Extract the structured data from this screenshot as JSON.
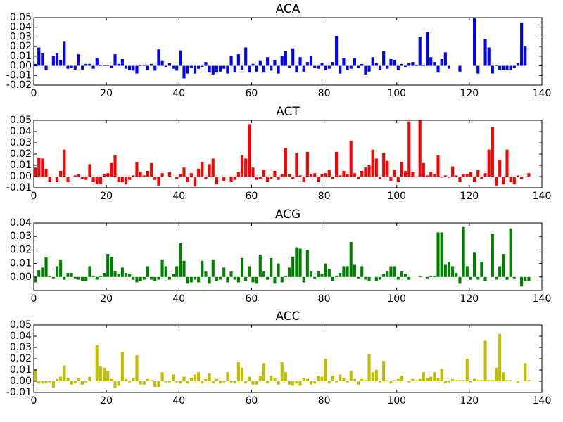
{
  "chart_data": [
    {
      "type": "bar",
      "title": "ACA",
      "color": "#0000ff",
      "x": [
        0,
        1,
        2,
        3,
        4,
        5,
        6,
        7,
        8,
        9,
        10,
        11,
        12,
        13,
        14,
        15,
        16,
        17,
        18,
        19,
        20,
        21,
        22,
        23,
        24,
        25,
        26,
        27,
        28,
        29,
        30,
        31,
        32,
        33,
        34,
        35,
        36,
        37,
        38,
        39,
        40,
        41,
        42,
        43,
        44,
        45,
        46,
        47,
        48,
        49,
        50,
        51,
        52,
        53,
        54,
        55,
        56,
        57,
        58,
        59,
        60,
        61,
        62,
        63,
        64,
        65,
        66,
        67,
        68,
        69,
        70,
        71,
        72,
        73,
        74,
        75,
        76,
        77,
        78,
        79,
        80,
        81,
        82,
        83,
        84,
        85,
        86,
        87,
        88,
        89,
        90,
        91,
        92,
        93,
        94,
        95,
        96,
        97,
        98,
        99,
        100,
        101,
        102,
        103,
        104,
        105,
        106,
        107,
        108,
        109,
        110,
        111,
        112,
        113,
        114,
        115,
        116,
        117,
        118,
        119,
        120,
        121,
        122,
        123,
        124,
        125,
        126,
        127,
        128,
        129,
        130,
        131,
        132,
        133,
        134,
        135,
        136
      ],
      "values": [
        0.002,
        0.019,
        0.013,
        -0.004,
        0,
        0.01,
        0.013,
        0.006,
        0.025,
        -0.003,
        -0.002,
        -0.004,
        0.012,
        -0.004,
        0.002,
        0.002,
        -0.003,
        0.008,
        0.001,
        0.001,
        0.001,
        -0.002,
        0.012,
        0.002,
        0.007,
        -0.003,
        -0.004,
        -0.005,
        -0.008,
        0.001,
        0.001,
        -0.004,
        0.002,
        -0.005,
        0.017,
        0.005,
        -0.001,
        0.003,
        -0.003,
        -0.005,
        0.016,
        -0.013,
        -0.008,
        -0.002,
        -0.008,
        -0.003,
        -0.001,
        0.004,
        -0.007,
        -0.009,
        -0.007,
        -0.006,
        -0.003,
        -0.008,
        0.01,
        -0.007,
        0.012,
        -0.004,
        0.019,
        -0.007,
        0.002,
        -0.006,
        0.005,
        -0.007,
        0.009,
        -0.005,
        0.006,
        -0.008,
        0.01,
        0.015,
        -0.002,
        0.018,
        -0.007,
        0.009,
        -0.006,
        0.004,
        0.01,
        -0.002,
        -0.003,
        0.003,
        -0.004,
        -0.003,
        0.004,
        0.031,
        -0.008,
        0.008,
        -0.004,
        -0.003,
        0.008,
        -0.002,
        0.002,
        -0.009,
        -0.006,
        0.009,
        0.003,
        -0.004,
        0.015,
        -0.003,
        0.007,
        0.006,
        -0.004,
        0.002,
        -0.001,
        0.003,
        0.004,
        0.001,
        0.03,
        0.001,
        0.035,
        0.009,
        0.004,
        -0.007,
        0.007,
        0.014,
        -0.003,
        0,
        0,
        -0.006,
        0,
        0,
        0,
        0.05,
        -0.008,
        0,
        0.028,
        0.019,
        -0.008,
        0.001,
        -0.004,
        -0.004,
        -0.004,
        -0.004,
        -0.002,
        0.003,
        0.045,
        0.02,
        0
      ],
      "xlim": [
        0,
        140
      ],
      "xticks": [
        0,
        20,
        40,
        60,
        80,
        100,
        120,
        140
      ],
      "ylim": [
        -0.02,
        0.05
      ],
      "yticks": [
        -0.02,
        -0.01,
        {
          "value": 0,
          "label": "0.00"
        },
        0.01,
        0.02,
        0.03,
        0.04,
        0.05
      ]
    },
    {
      "type": "bar",
      "title": "ACT",
      "color": "#ff0000",
      "x": [
        0,
        1,
        2,
        3,
        4,
        5,
        6,
        7,
        8,
        9,
        10,
        11,
        12,
        13,
        14,
        15,
        16,
        17,
        18,
        19,
        20,
        21,
        22,
        23,
        24,
        25,
        26,
        27,
        28,
        29,
        30,
        31,
        32,
        33,
        34,
        35,
        36,
        37,
        38,
        39,
        40,
        41,
        42,
        43,
        44,
        45,
        46,
        47,
        48,
        49,
        50,
        51,
        52,
        53,
        54,
        55,
        56,
        57,
        58,
        59,
        60,
        61,
        62,
        63,
        64,
        65,
        66,
        67,
        68,
        69,
        70,
        71,
        72,
        73,
        74,
        75,
        76,
        77,
        78,
        79,
        80,
        81,
        82,
        83,
        84,
        85,
        86,
        87,
        88,
        89,
        90,
        91,
        92,
        93,
        94,
        95,
        96,
        97,
        98,
        99,
        100,
        101,
        102,
        103,
        104,
        105,
        106,
        107,
        108,
        109,
        110,
        111,
        112,
        113,
        114,
        115,
        116,
        117,
        118,
        119,
        120,
        121,
        122,
        123,
        124,
        125,
        126,
        127,
        128,
        129,
        130,
        131,
        132,
        133,
        134,
        135,
        136
      ],
      "values": [
        0.008,
        0.017,
        0.016,
        0.007,
        -0.005,
        0,
        -0.005,
        0.005,
        0.024,
        -0.005,
        0,
        0.001,
        0.002,
        -0.002,
        -0.003,
        0.011,
        -0.005,
        -0.007,
        -0.007,
        0.002,
        0.003,
        0.012,
        0.019,
        -0.005,
        -0.005,
        -0.007,
        -0.003,
        0.001,
        0.013,
        0.004,
        0.001,
        0.005,
        0.012,
        -0.003,
        -0.008,
        0.003,
        0,
        0.004,
        0,
        -0.002,
        0.002,
        0.008,
        -0.005,
        0.003,
        -0.009,
        0.007,
        0.013,
        -0.002,
        0.011,
        0.016,
        -0.007,
        0,
        -0.004,
        0,
        -0.005,
        -0.003,
        0.004,
        0.019,
        0.016,
        0.046,
        0.008,
        -0.003,
        -0.002,
        0.006,
        -0.005,
        -0.002,
        0.005,
        -0.003,
        0.002,
        0.025,
        0.002,
        -0.002,
        0.021,
        0.001,
        -0.005,
        0.022,
        0.002,
        0.003,
        -0.005,
        0.002,
        0.003,
        0.006,
        -0.002,
        0.022,
        0.001,
        0.005,
        0.002,
        0.032,
        0.003,
        -0.002,
        0.005,
        0.008,
        0.01,
        0.024,
        0.016,
        -0.002,
        0.021,
        0.014,
        -0.004,
        0.006,
        -0.005,
        0.013,
        0.005,
        0.049,
        0.004,
        0,
        0.05,
        0.012,
        0.001,
        0.004,
        0.002,
        0.019,
        -0.001,
        0.001,
        -0.001,
        0.009,
        0.001,
        -0.005,
        0.002,
        0.002,
        0.004,
        -0.005,
        0.006,
        -0.002,
        0.003,
        0.024,
        0.044,
        -0.008,
        0.015,
        -0.007,
        0.024,
        -0.005,
        -0.007,
        0.001,
        -0.002,
        0,
        0.003
      ],
      "xlim": [
        0,
        140
      ],
      "xticks": [
        0,
        20,
        40,
        60,
        80,
        100,
        120,
        140
      ],
      "ylim": [
        -0.01,
        0.05
      ],
      "yticks": [
        -0.01,
        {
          "value": 0,
          "label": "0.00"
        },
        0.01,
        0.02,
        0.03,
        0.04,
        0.05
      ]
    },
    {
      "type": "bar",
      "title": "ACG",
      "color": "#008000",
      "x": [
        0,
        1,
        2,
        3,
        4,
        5,
        6,
        7,
        8,
        9,
        10,
        11,
        12,
        13,
        14,
        15,
        16,
        17,
        18,
        19,
        20,
        21,
        22,
        23,
        24,
        25,
        26,
        27,
        28,
        29,
        30,
        31,
        32,
        33,
        34,
        35,
        36,
        37,
        38,
        39,
        40,
        41,
        42,
        43,
        44,
        45,
        46,
        47,
        48,
        49,
        50,
        51,
        52,
        53,
        54,
        55,
        56,
        57,
        58,
        59,
        60,
        61,
        62,
        63,
        64,
        65,
        66,
        67,
        68,
        69,
        70,
        71,
        72,
        73,
        74,
        75,
        76,
        77,
        78,
        79,
        80,
        81,
        82,
        83,
        84,
        85,
        86,
        87,
        88,
        89,
        90,
        91,
        92,
        93,
        94,
        95,
        96,
        97,
        98,
        99,
        100,
        101,
        102,
        103,
        104,
        105,
        106,
        107,
        108,
        109,
        110,
        111,
        112,
        113,
        114,
        115,
        116,
        117,
        118,
        119,
        120,
        121,
        122,
        123,
        124,
        125,
        126,
        127,
        128,
        129,
        130,
        131,
        132,
        133,
        134,
        135,
        136
      ],
      "values": [
        -0.004,
        0.005,
        0.007,
        0.015,
        0.001,
        -0.001,
        0.008,
        0.013,
        -0.002,
        0.003,
        0.003,
        -0.001,
        -0.002,
        -0.003,
        -0.003,
        0.008,
        0.001,
        -0.002,
        0.001,
        0.003,
        0.017,
        0.015,
        0.004,
        0.002,
        0.007,
        0.003,
        0.002,
        -0.002,
        -0.004,
        -0.003,
        -0.002,
        0.008,
        -0.002,
        -0.003,
        -0.002,
        0.013,
        0.008,
        -0.002,
        0.002,
        0.008,
        0.025,
        0.012,
        -0.005,
        -0.004,
        -0.002,
        -0.004,
        0.012,
        0.004,
        -0.005,
        0.013,
        -0.003,
        -0.002,
        0.007,
        -0.004,
        0.004,
        -0.002,
        -0.004,
        0.014,
        -0.003,
        0.008,
        -0.004,
        -0.005,
        0.016,
        0.004,
        -0.002,
        0.014,
        -0.005,
        0.01,
        -0.004,
        0.001,
        0.007,
        0.015,
        0.022,
        0.021,
        -0.004,
        0.02,
        0.004,
        -0.001,
        0.004,
        0.002,
        0.01,
        0.006,
        -0.003,
        0.001,
        0.003,
        0.008,
        0.008,
        0.026,
        0.009,
        -0.001,
        0.008,
        -0.002,
        -0.003,
        0,
        -0.003,
        -0.002,
        0.002,
        0.004,
        0.008,
        0.008,
        -0.002,
        0.004,
        0.002,
        -0.002,
        0,
        0,
        0.001,
        0,
        -0.001,
        0.001,
        0.001,
        0.033,
        0.033,
        0.009,
        0.011,
        0.008,
        0.003,
        -0.005,
        0.037,
        0.008,
        -0.002,
        0.018,
        -0.002,
        0.011,
        -0.003,
        0,
        0.032,
        -0.002,
        0.008,
        0.017,
        -0.002,
        0.036,
        -0.001,
        0,
        -0.007,
        -0.003,
        -0.003
      ],
      "xlim": [
        0,
        140
      ],
      "xticks": [
        0,
        20,
        40,
        60,
        80,
        100,
        120,
        140
      ],
      "ylim": [
        -0.01,
        0.04
      ],
      "yticks": [
        {
          "value": 0,
          "label": "0.00"
        },
        0.01,
        0.02,
        0.03,
        0.04
      ]
    },
    {
      "type": "bar",
      "title": "ACC",
      "color": "#bfbf00",
      "x": [
        0,
        1,
        2,
        3,
        4,
        5,
        6,
        7,
        8,
        9,
        10,
        11,
        12,
        13,
        14,
        15,
        16,
        17,
        18,
        19,
        20,
        21,
        22,
        23,
        24,
        25,
        26,
        27,
        28,
        29,
        30,
        31,
        32,
        33,
        34,
        35,
        36,
        37,
        38,
        39,
        40,
        41,
        42,
        43,
        44,
        45,
        46,
        47,
        48,
        49,
        50,
        51,
        52,
        53,
        54,
        55,
        56,
        57,
        58,
        59,
        60,
        61,
        62,
        63,
        64,
        65,
        66,
        67,
        68,
        69,
        70,
        71,
        72,
        73,
        74,
        75,
        76,
        77,
        78,
        79,
        80,
        81,
        82,
        83,
        84,
        85,
        86,
        87,
        88,
        89,
        90,
        91,
        92,
        93,
        94,
        95,
        96,
        97,
        98,
        99,
        100,
        101,
        102,
        103,
        104,
        105,
        106,
        107,
        108,
        109,
        110,
        111,
        112,
        113,
        114,
        115,
        116,
        117,
        118,
        119,
        120,
        121,
        122,
        123,
        124,
        125,
        126,
        127,
        128,
        129,
        130,
        131,
        132,
        133,
        134,
        135,
        136
      ],
      "values": [
        0.011,
        -0.002,
        -0.002,
        -0.002,
        -0.001,
        -0.006,
        0.002,
        0.004,
        0.014,
        0.003,
        -0.003,
        -0.002,
        0.003,
        -0.003,
        -0.001,
        0.004,
        0,
        0.032,
        0.013,
        0.012,
        0.009,
        0.002,
        -0.006,
        -0.004,
        0.026,
        0.002,
        -0.001,
        0.003,
        0.023,
        -0.003,
        -0.003,
        0.002,
        0.001,
        -0.005,
        -0.005,
        0.008,
        -0.001,
        -0.001,
        0.006,
        -0.001,
        -0.002,
        0.004,
        -0.002,
        0.003,
        0.006,
        0.008,
        -0.002,
        0.002,
        0.007,
        -0.002,
        0.002,
        -0.002,
        -0.001,
        0.008,
        -0.001,
        -0.002,
        0.017,
        0.012,
        -0.002,
        0.004,
        -0.003,
        -0.003,
        0.005,
        0.016,
        -0.002,
        0.005,
        0.003,
        -0.003,
        0.017,
        0.008,
        -0.003,
        -0.004,
        -0.002,
        -0.004,
        0.003,
        0.002,
        -0.003,
        -0.002,
        0.005,
        0.004,
        0.02,
        -0.002,
        0.005,
        -0.001,
        0.006,
        0.003,
        -0.001,
        0.009,
        0.002,
        -0.003,
        0.002,
        0.001,
        0.024,
        0.008,
        0.01,
        -0.001,
        0.018,
        0.001,
        -0.002,
        0.001,
        0.002,
        0.005,
        0,
        -0.001,
        0.002,
        0.001,
        0.002,
        0.008,
        0.003,
        0.004,
        0.008,
        0.003,
        0.011,
        -0.002,
        -0.001,
        0.002,
        0.001,
        0.001,
        0.001,
        0.02,
        -0.001,
        0.002,
        0.001,
        0.001,
        0.036,
        0.001,
        0.001,
        0.012,
        0.042,
        0.008,
        0.001,
        0.001,
        0,
        -0.001,
        0,
        0.016,
        0.001
      ],
      "xlim": [
        0,
        140
      ],
      "xticks": [
        0,
        20,
        40,
        60,
        80,
        100,
        120,
        140
      ],
      "ylim": [
        -0.01,
        0.05
      ],
      "yticks": [
        -0.01,
        {
          "value": 0,
          "label": "0.00"
        },
        0.01,
        0.02,
        0.03,
        0.04,
        0.05
      ]
    }
  ]
}
